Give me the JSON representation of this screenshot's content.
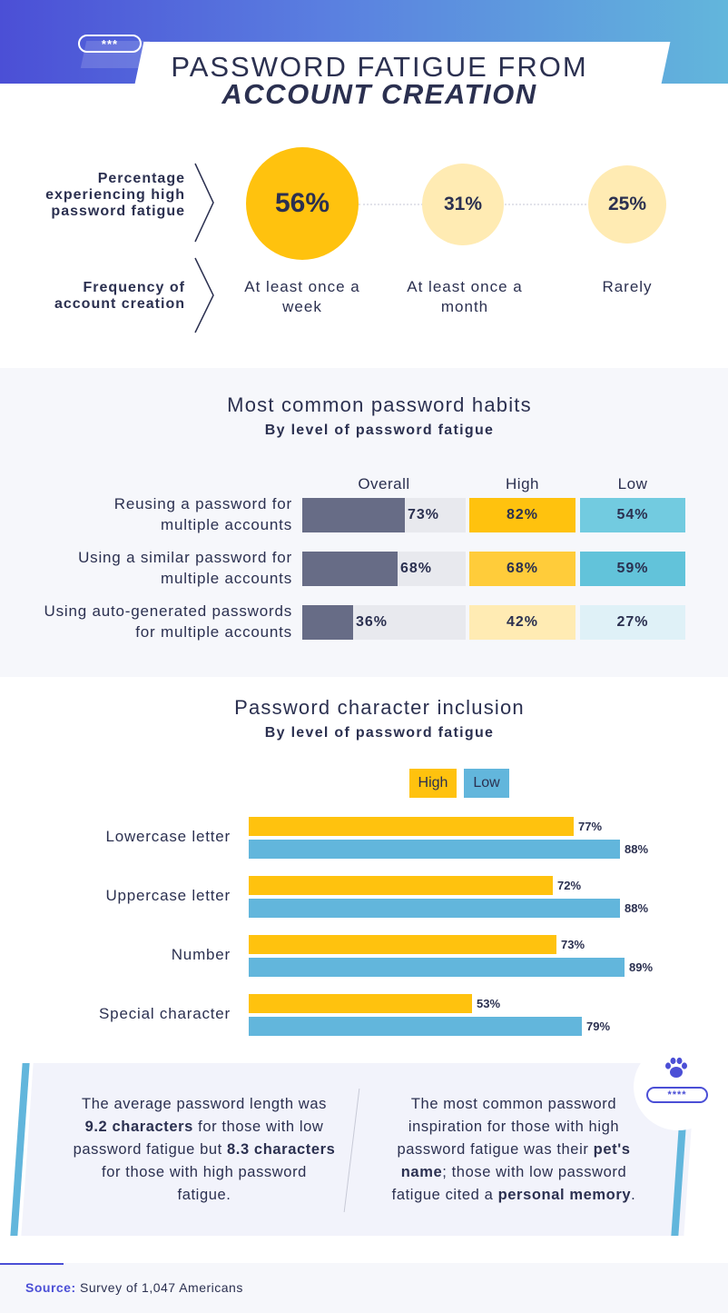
{
  "header": {
    "password_dots": "***",
    "title_line1": "PASSWORD FATIGUE FROM",
    "title_line2": "ACCOUNT CREATION"
  },
  "fatigue_by_frequency": {
    "row1_label_lines": [
      "Percentage",
      "experiencing high",
      "password fatigue"
    ],
    "row2_label_lines": [
      "Frequency of",
      "account creation"
    ],
    "items": [
      {
        "value": "56%",
        "frequency": "At least once a week"
      },
      {
        "value": "31%",
        "frequency": "At least once a month"
      },
      {
        "value": "25%",
        "frequency": "Rarely"
      }
    ],
    "colors": {
      "strong": "#ffc20e",
      "light": "#ffebb3"
    }
  },
  "chart_data": [
    {
      "type": "table",
      "title": "Most common password habits",
      "subtitle": "By level of password fatigue",
      "columns": [
        "Overall",
        "High",
        "Low"
      ],
      "rows": [
        {
          "label": "Reusing a password for multiple accounts",
          "label_lines": [
            "Reusing a password for",
            "multiple accounts"
          ],
          "overall": 73,
          "high": 82,
          "low": 54
        },
        {
          "label": "Using a similar password for multiple accounts",
          "label_lines": [
            "Using a similar password for",
            "multiple accounts"
          ],
          "overall": 68,
          "high": 68,
          "low": 59
        },
        {
          "label": "Using auto-generated passwords for multiple accounts",
          "label_lines": [
            "Using auto-generated passwords",
            "for multiple accounts"
          ],
          "overall": 36,
          "high": 42,
          "low": 27
        }
      ],
      "unit": "%"
    },
    {
      "type": "bar",
      "orientation": "horizontal",
      "title": "Password character inclusion",
      "subtitle": "By level of password fatigue",
      "categories": [
        "Lowercase letter",
        "Uppercase letter",
        "Number",
        "Special character"
      ],
      "series": [
        {
          "name": "High",
          "color": "#ffc20e",
          "values": [
            77,
            72,
            73,
            53
          ]
        },
        {
          "name": "Low",
          "color": "#62b6dc",
          "values": [
            88,
            88,
            89,
            79
          ]
        }
      ],
      "xlim": [
        0,
        100
      ],
      "unit": "%"
    }
  ],
  "callout": {
    "left": {
      "p1": "The average password length was ",
      "b1": "9.2 characters",
      "p2": " for those with low password fatigue but ",
      "b2": "8.3 characters",
      "p3": " for those with high password fatigue."
    },
    "right": {
      "p1": "The most common password inspiration for those with high password fatigue was their ",
      "b1": "pet's name",
      "p2": "; those with low password fatigue cited a ",
      "b2": "personal memory",
      "p3": "."
    },
    "badge_dots": "****",
    "badge_icon": "paw-icon"
  },
  "footer": {
    "source_label": "Source:",
    "source_text": " Survey of 1,047 Americans"
  }
}
